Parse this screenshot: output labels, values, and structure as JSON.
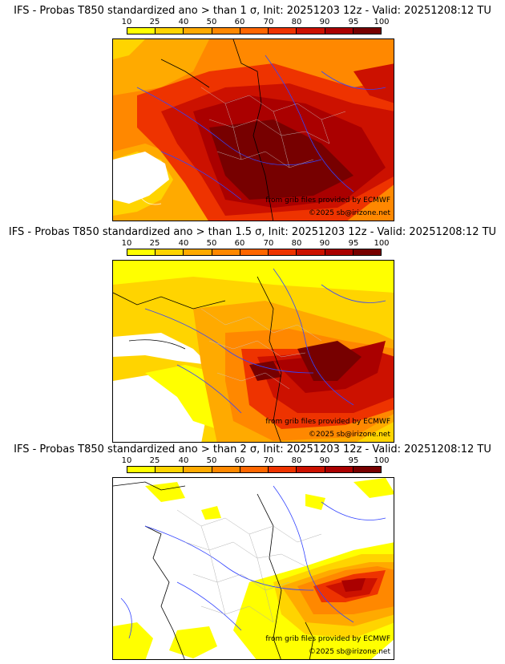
{
  "colorbar": {
    "ticks": [
      "10",
      "25",
      "40",
      "50",
      "60",
      "70",
      "80",
      "90",
      "95",
      "100"
    ],
    "colors": [
      "#ffff00",
      "#ffd400",
      "#ffaa00",
      "#ff8800",
      "#ff6600",
      "#ee3300",
      "#cc1100",
      "#aa0000",
      "#770000"
    ]
  },
  "panels": [
    {
      "title": "IFS - Probas T850  standardized ano > than 1 σ, Init: 20251203 12z - Valid: 20251208:12 TU",
      "credit_line1": "from grib files provided by ECMWF",
      "credit_line2": "©2025 sb@irizone.net"
    },
    {
      "title": "IFS - Probas T850  standardized ano > than 1.5 σ, Init: 20251203 12z - Valid: 20251208:12 TU",
      "credit_line1": "from grib files provided by ECMWF",
      "credit_line2": "©2025 sb@irizone.net"
    },
    {
      "title": "IFS - Probas T850  standardized ano > than 2 σ, Init: 20251203 12z - Valid: 20251208:12 TU",
      "credit_line1": "from grib files provided by ECMWF",
      "credit_line2": "©2025 sb@irizone.net"
    }
  ]
}
